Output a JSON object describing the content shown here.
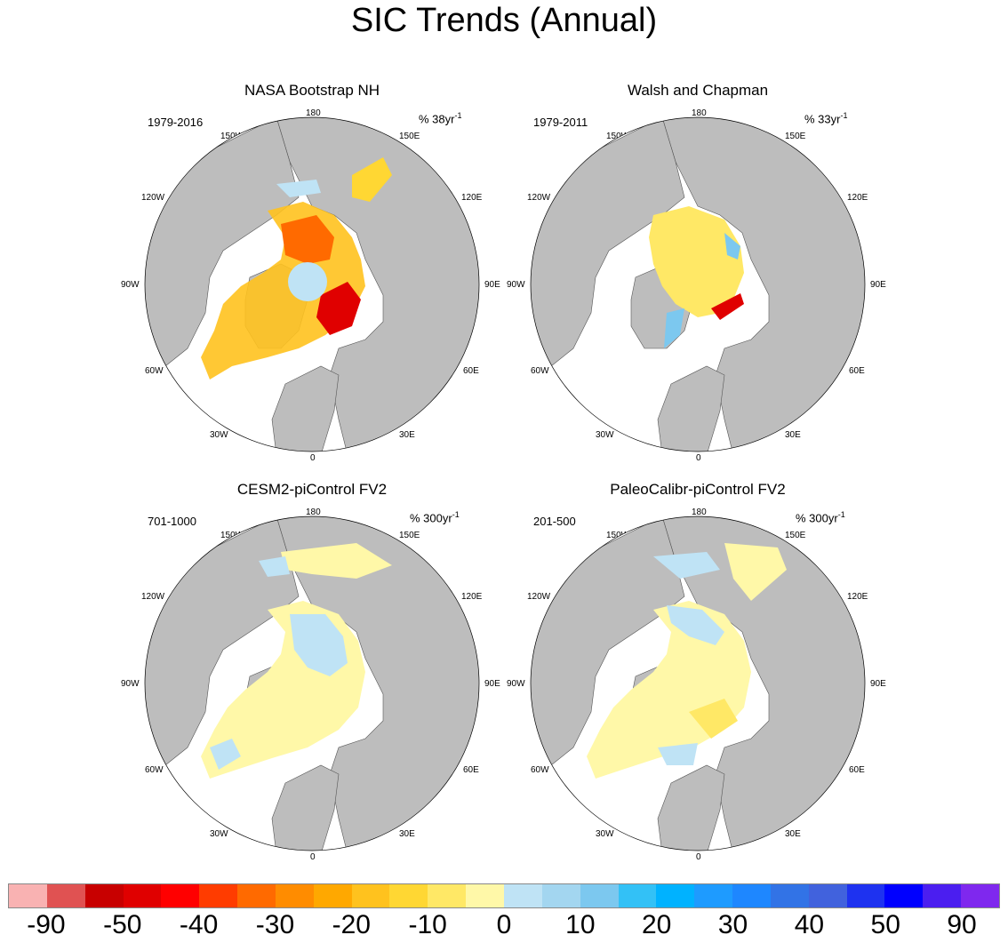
{
  "title": "SIC Trends (Annual)",
  "panels": [
    {
      "title": "NASA Bootstrap NH",
      "period": "1979-2016",
      "units_base": "% 38yr",
      "units_exp": "-1"
    },
    {
      "title": "Walsh and Chapman",
      "period": "1979-2011",
      "units_base": "% 33yr",
      "units_exp": "-1"
    },
    {
      "title": "CESM2-piControl FV2",
      "period": "701-1000",
      "units_base": "% 300yr",
      "units_exp": "-1"
    },
    {
      "title": "PaleoCalibr-piControl FV2",
      "period": "201-500",
      "units_base": "% 300yr",
      "units_exp": "-1"
    }
  ],
  "lon_labels": {
    "n180": "180",
    "w150": "150W",
    "e150": "150E",
    "w120": "120W",
    "e120": "120E",
    "w90": "90W",
    "e90": "90E",
    "w60": "60W",
    "e60": "60E",
    "w30": "30W",
    "e30": "30E",
    "n0": "0"
  },
  "colorbar": {
    "colors": [
      "#f9b2b2",
      "#e05252",
      "#c80000",
      "#e00000",
      "#ff0000",
      "#ff3c00",
      "#ff6a00",
      "#ff8c00",
      "#ffa800",
      "#ffc21e",
      "#ffd733",
      "#ffe866",
      "#fff8a8",
      "#bfe3f5",
      "#a3d6f0",
      "#7cc8ef",
      "#33c1f6",
      "#00b2ff",
      "#1e9bff",
      "#1e87ff",
      "#3273e6",
      "#4162dd",
      "#1e32f0",
      "#0000ff",
      "#4b1ef0",
      "#7f28ee"
    ],
    "labels": [
      "-90",
      "-50",
      "-40",
      "-30",
      "-20",
      "-10",
      "0",
      "10",
      "20",
      "30",
      "40",
      "50",
      "90"
    ]
  }
}
